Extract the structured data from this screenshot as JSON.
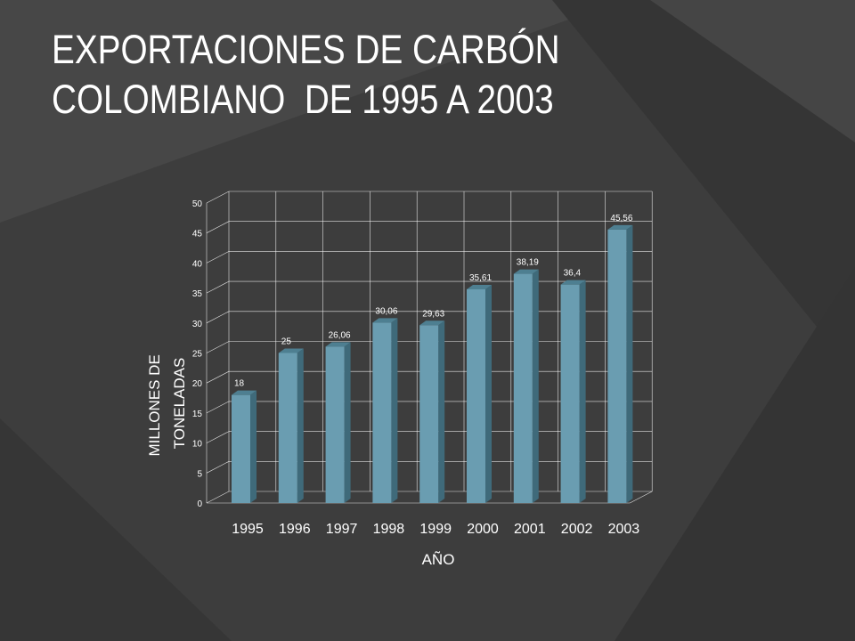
{
  "slide": {
    "title_line1": "EXPORTACIONES DE CARBÓN",
    "title_line2": "COLOMBIANO  DE 1995 A 2003"
  },
  "colors": {
    "background": "#3d3d3d",
    "bar_front": "#6a9db1",
    "bar_side": "#3f6a7a",
    "bar_top": "#4e7f91",
    "grid": "#ffffff"
  },
  "chart_data": {
    "type": "bar",
    "categories": [
      "1995",
      "1996",
      "1997",
      "1998",
      "1999",
      "2000",
      "2001",
      "2002",
      "2003"
    ],
    "values": [
      18,
      25,
      26.06,
      30.06,
      29.63,
      35.61,
      38.19,
      36.4,
      45.56
    ],
    "data_labels": [
      "18",
      "25",
      "26,06",
      "30,06",
      "29,63",
      "35,61",
      "38,19",
      "36,4",
      "45,56"
    ],
    "title": "",
    "xlabel": "AÑO",
    "ylabel": "MILLONES    DE TONELADAS",
    "ylabel_lines": [
      "MILLONES    DE",
      "TONELADAS"
    ],
    "ylim": [
      0,
      50
    ],
    "yticks": [
      0,
      5,
      10,
      15,
      20,
      25,
      30,
      35,
      40,
      45,
      50
    ],
    "grid": true,
    "legend": "none",
    "style": "3d-columns"
  }
}
